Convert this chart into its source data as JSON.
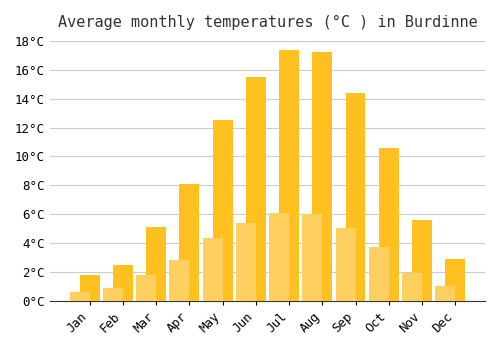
{
  "title": "Average monthly temperatures (°C ) in Burdinne",
  "months": [
    "Jan",
    "Feb",
    "Mar",
    "Apr",
    "May",
    "Jun",
    "Jul",
    "Aug",
    "Sep",
    "Oct",
    "Nov",
    "Dec"
  ],
  "values": [
    1.8,
    2.5,
    5.1,
    8.1,
    12.5,
    15.5,
    17.4,
    17.2,
    14.4,
    10.6,
    5.6,
    2.9
  ],
  "bar_color_top": "#FFC020",
  "bar_color_bottom": "#FFD060",
  "background_color": "#FFFFFF",
  "grid_color": "#CCCCCC",
  "ylim": [
    0,
    18
  ],
  "yticks": [
    0,
    2,
    4,
    6,
    8,
    10,
    12,
    14,
    16,
    18
  ],
  "title_fontsize": 11,
  "tick_fontsize": 9,
  "font_family": "monospace"
}
